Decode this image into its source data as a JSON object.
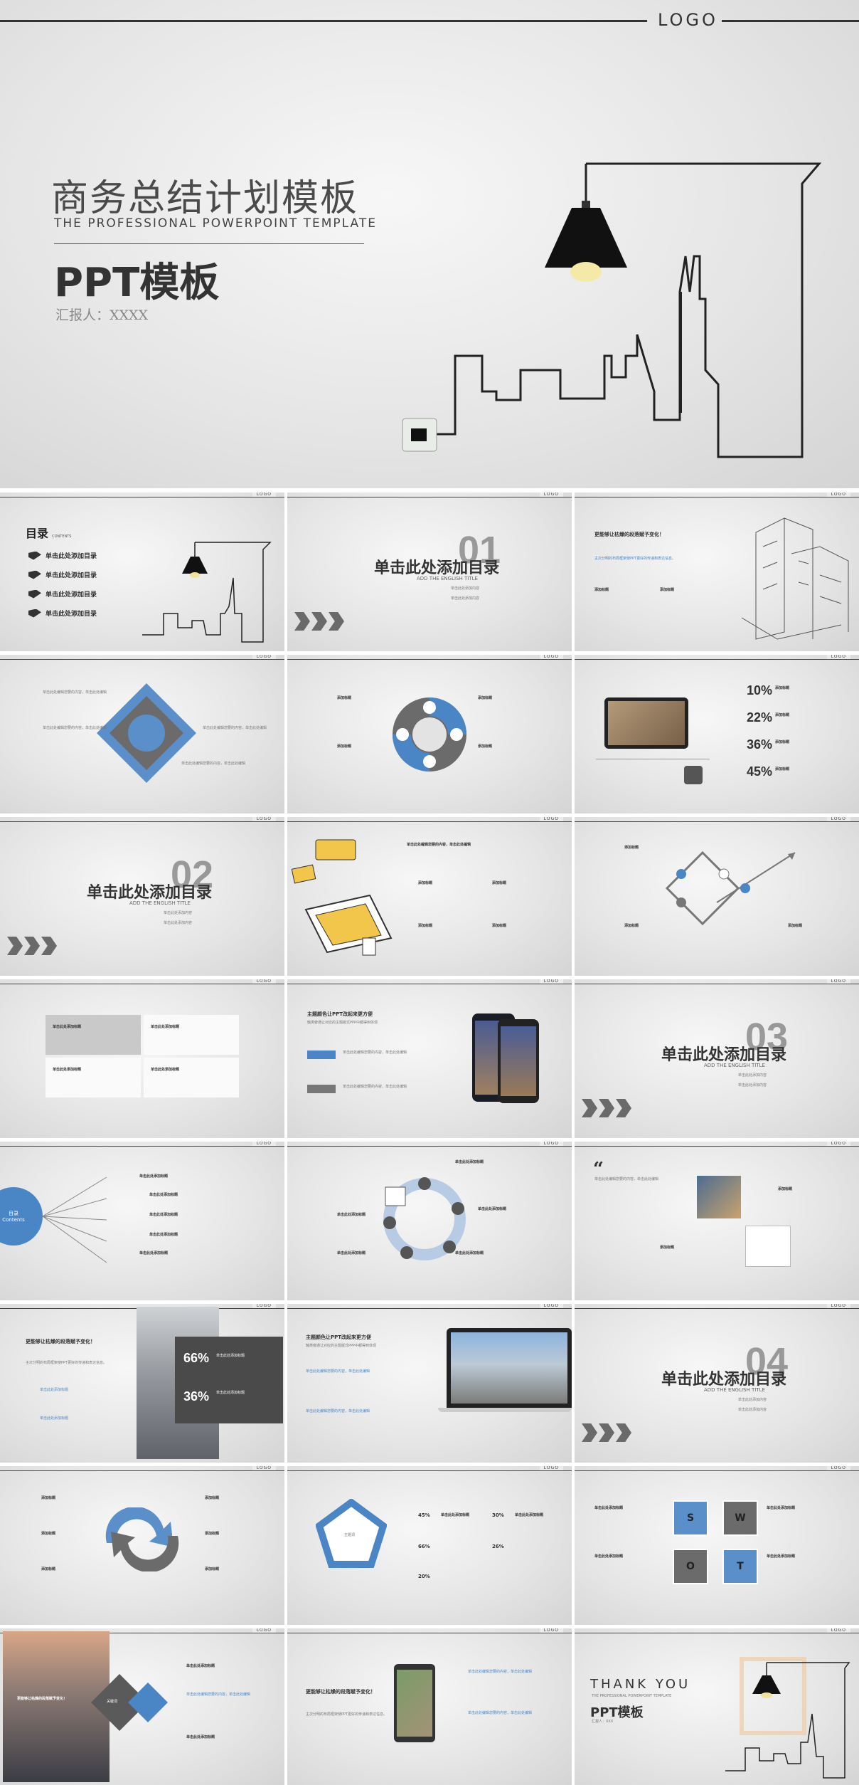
{
  "logo": "LOGO",
  "cover": {
    "title": "商务总结计划模板",
    "subtitle": "THE PROFESSIONAL POWERPOINT TEMPLATE",
    "ppt": "PPT模板",
    "reporter": "汇报人：XXXX"
  },
  "toc": {
    "heading": "目录",
    "heading_en": "CONTENTS",
    "items": [
      "单击此处添加目录",
      "单击此处添加目录",
      "单击此处添加目录",
      "单击此处添加目录"
    ]
  },
  "section": {
    "title": "单击此处添加目录",
    "en": "ADD THE ENGLISH TITLE",
    "bullets": [
      "单击此处添加内容",
      "单击此处添加内容"
    ],
    "numbers": [
      "01",
      "02",
      "03",
      "04"
    ]
  },
  "common": {
    "add_title": "添加标题",
    "click_title": "单击此处添加标题",
    "body_text": "单击此处编辑您要的内容，单击此处编辑",
    "para_head": "更能够让枯燥的段落赋予变化！",
    "para_sub": "主次分明的布局框架使PPT更好的传递和表达信息。",
    "theme_head": "主题颜色让PPT改起来更方便",
    "theme_sub": "触类旁通让对应的主题版式PPP中都得到体现",
    "keyword": "关键词",
    "keyword_label": "主题词",
    "contents_cn": "目录",
    "contents_en": "Contents"
  },
  "stats": {
    "percents": [
      "10%",
      "22%",
      "36%",
      "45%"
    ],
    "sixty": "66%",
    "thirty": "36%",
    "chart_percents": [
      "45%",
      "30%",
      "66%",
      "26%",
      "20%"
    ]
  },
  "swot": [
    "S",
    "W",
    "O",
    "T"
  ],
  "ending": {
    "thank": "THANK YOU",
    "subtitle": "THE PROFESSIONAL POWERPOINT TEMPLATE",
    "ppt": "PPT模板",
    "reporter": "汇报人：XXX"
  },
  "colors": {
    "accent": "#4a86c5",
    "dark": "#333333",
    "gray": "#6b6b6b"
  }
}
